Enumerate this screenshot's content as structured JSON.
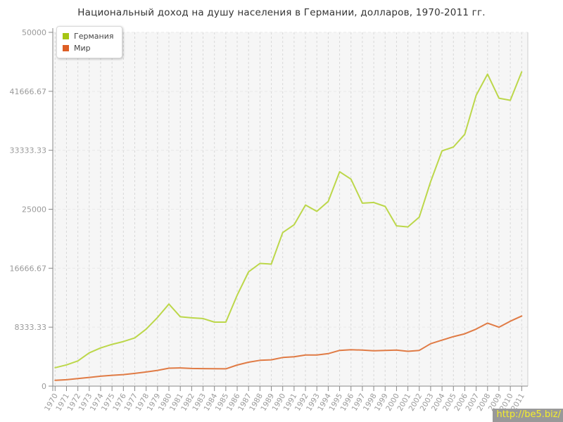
{
  "watermark": {
    "text": "http://be5.biz/",
    "bg": "#999999",
    "color": "#f5ee2b"
  },
  "chart_data": {
    "type": "line",
    "title": "Национальный доход на душу населения в Германии, долларов, 1970-2011 гг.",
    "xlabel": "",
    "ylabel": "",
    "ylim": [
      0,
      50000
    ],
    "grid": true,
    "legend_position": "top-left",
    "y_ticks": [
      {
        "value": 0,
        "label": "0"
      },
      {
        "value": 8333.33,
        "label": "8333.33"
      },
      {
        "value": 16666.67,
        "label": "16666.67"
      },
      {
        "value": 25000,
        "label": "25000"
      },
      {
        "value": 33333.33,
        "label": "33333.33"
      },
      {
        "value": 41666.67,
        "label": "41666.67"
      },
      {
        "value": 50000,
        "label": "50000"
      }
    ],
    "x": [
      1970,
      1971,
      1972,
      1973,
      1974,
      1975,
      1976,
      1977,
      1978,
      1979,
      1980,
      1981,
      1982,
      1983,
      1984,
      1985,
      1986,
      1987,
      1988,
      1989,
      1990,
      1991,
      1992,
      1993,
      1994,
      1995,
      1996,
      1997,
      1998,
      1999,
      2000,
      2001,
      2002,
      2003,
      2004,
      2005,
      2006,
      2007,
      2008,
      2009,
      2010,
      2011
    ],
    "series": [
      {
        "name": "Германия",
        "color": "#bcd74a",
        "swatch": "#a6c614",
        "values": [
          2600,
          3000,
          3560,
          4700,
          5400,
          5900,
          6300,
          6820,
          8060,
          9700,
          11600,
          9800,
          9650,
          9550,
          9050,
          9050,
          12850,
          16150,
          17350,
          17250,
          21700,
          22800,
          25600,
          24700,
          26100,
          30300,
          29250,
          25850,
          25950,
          25400,
          22650,
          22500,
          23900,
          28900,
          33250,
          33800,
          35600,
          41100,
          44100,
          40700,
          40400,
          44400
        ]
      },
      {
        "name": "Мир",
        "color": "#e07b45",
        "swatch": "#dd5e25",
        "values": [
          830,
          900,
          1070,
          1230,
          1400,
          1530,
          1630,
          1800,
          2000,
          2230,
          2530,
          2570,
          2500,
          2480,
          2460,
          2450,
          2980,
          3380,
          3650,
          3720,
          4050,
          4150,
          4390,
          4390,
          4590,
          5050,
          5150,
          5090,
          4990,
          5050,
          5090,
          4920,
          5050,
          5990,
          6500,
          7000,
          7400,
          8060,
          8910,
          8330,
          9170,
          9910
        ]
      }
    ]
  }
}
